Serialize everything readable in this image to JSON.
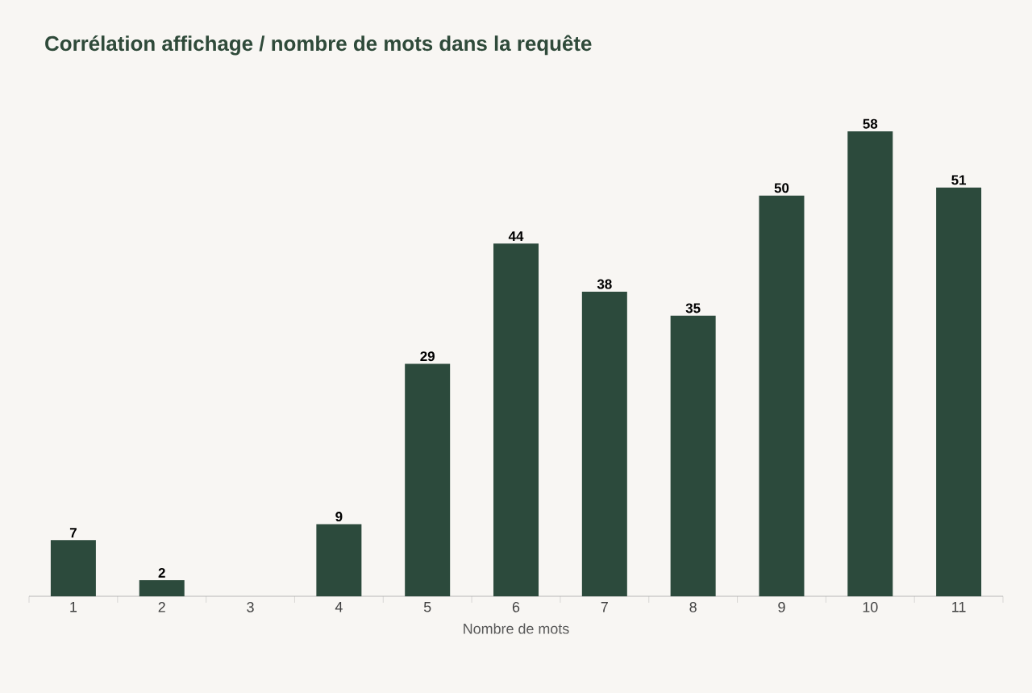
{
  "chart_data": {
    "type": "bar",
    "title": "Corrélation affichage / nombre de mots dans la requête",
    "xlabel": "Nombre de mots",
    "categories": [
      "1",
      "2",
      "3",
      "4",
      "5",
      "6",
      "7",
      "8",
      "9",
      "10",
      "11"
    ],
    "values": [
      7,
      2,
      0,
      9,
      29,
      44,
      38,
      35,
      50,
      58,
      51
    ],
    "value_labels": [
      "7",
      "2",
      null,
      "9",
      "29",
      "44",
      "38",
      "35",
      "50",
      "58",
      "51"
    ],
    "color": "#2c4a3c"
  }
}
